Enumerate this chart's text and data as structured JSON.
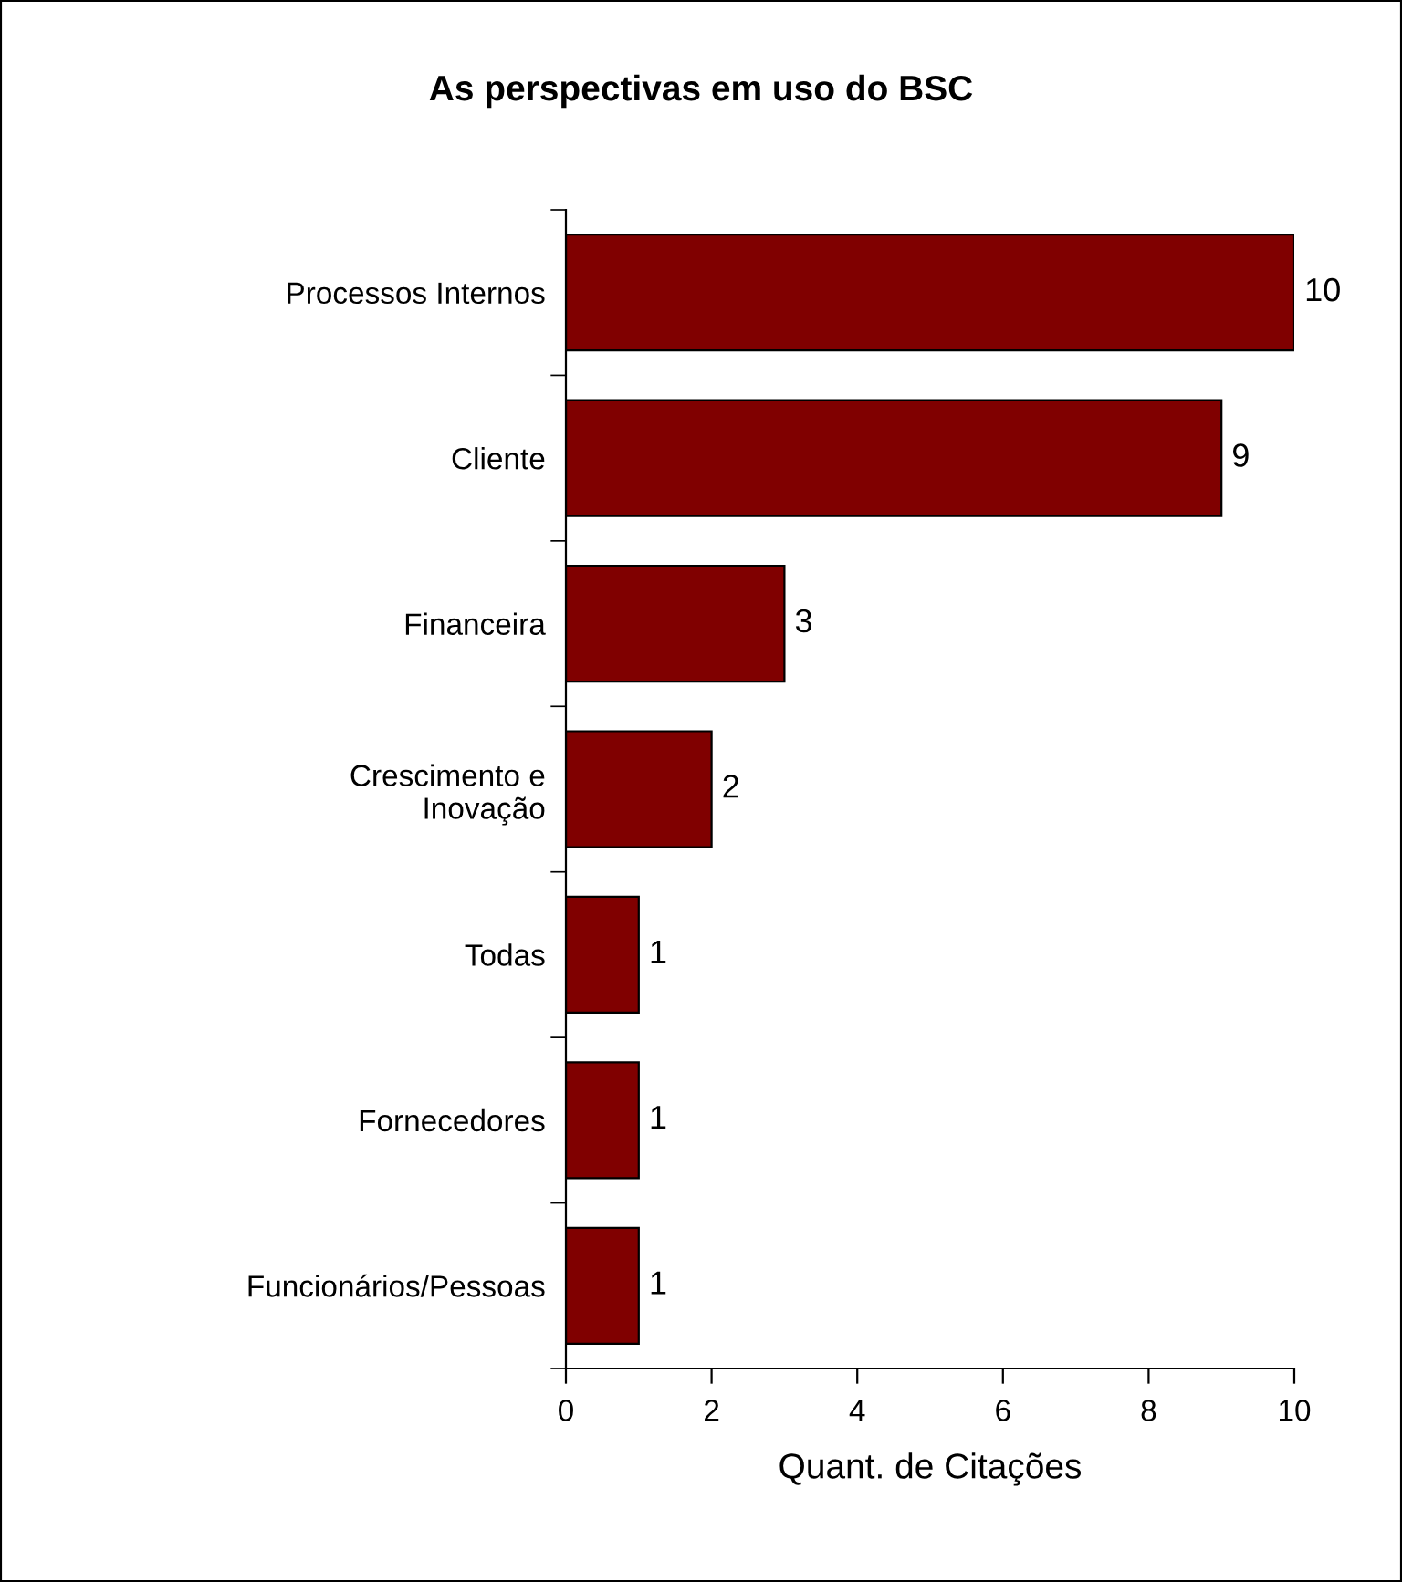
{
  "chart_data": {
    "type": "bar",
    "orientation": "horizontal",
    "title": "As perspectivas em uso do BSC",
    "xlabel": "Quant. de Citações",
    "categories": [
      "Processos Internos",
      "Cliente",
      "Financeira",
      "Crescimento e\nInovação",
      "Todas",
      "Fornecedores",
      "Funcionários/Pessoas"
    ],
    "values": [
      10,
      9,
      3,
      2,
      1,
      1,
      1
    ],
    "color": "#800000",
    "xlim": [
      0,
      10
    ],
    "xticks": [
      0,
      2,
      4,
      6,
      8,
      10
    ],
    "data_labels": true,
    "grid": false,
    "legend": false
  }
}
